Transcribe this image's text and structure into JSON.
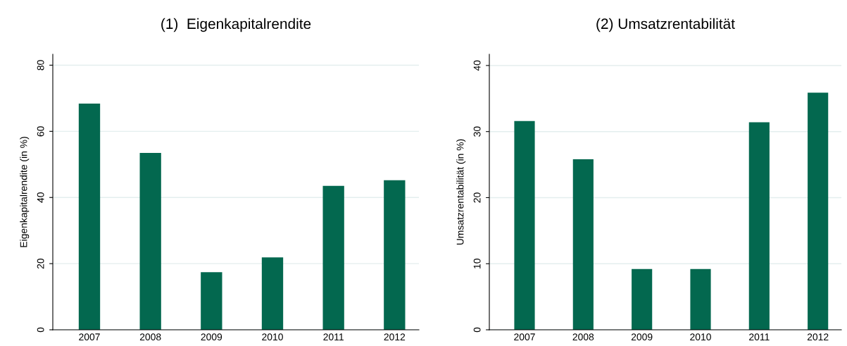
{
  "chart_data": [
    {
      "type": "bar",
      "title": "(1)  Eigenkapitalrendite",
      "ylabel": "Eigenkapitalrendite (in %)",
      "categories": [
        "2007",
        "2008",
        "2009",
        "2010",
        "2011",
        "2012"
      ],
      "values": [
        68.4,
        53.5,
        17.4,
        21.9,
        43.5,
        45.2
      ],
      "color": "#03684f",
      "ylim": [
        0,
        83.3
      ],
      "yticks": [
        0,
        20,
        40,
        60,
        80
      ],
      "grid": "y"
    },
    {
      "type": "bar",
      "title": "(2) Umsatzrentabilität",
      "ylabel": "Umsatzrentabilität (in %)",
      "categories": [
        "2007",
        "2008",
        "2009",
        "2010",
        "2011",
        "2012"
      ],
      "values": [
        31.6,
        25.8,
        9.2,
        9.2,
        31.4,
        35.9
      ],
      "color": "#03684f",
      "ylim": [
        0,
        41.7
      ],
      "yticks": [
        0,
        10,
        20,
        30,
        40
      ],
      "grid": "y"
    }
  ]
}
